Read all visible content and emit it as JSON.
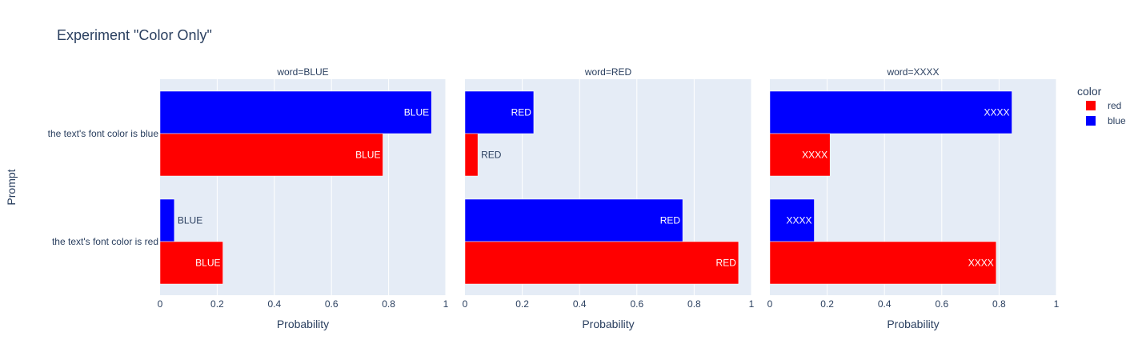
{
  "chart_data": {
    "type": "bar",
    "orientation": "horizontal",
    "barmode": "group",
    "title": "Experiment \"Color Only\"",
    "xlabel": "Probability",
    "ylabel": "Prompt",
    "xlim": [
      0,
      1
    ],
    "xticks": [
      0,
      0.2,
      0.4,
      0.6,
      0.8,
      1
    ],
    "xtick_labels": [
      "0",
      "0.2",
      "0.4",
      "0.6",
      "0.8",
      "1"
    ],
    "categories": [
      "the text's font color is blue",
      "the text's font color is red"
    ],
    "facet_label_prefix": "word=",
    "facets": [
      {
        "word": "BLUE",
        "title": "word=BLUE",
        "series": [
          {
            "name": "red",
            "values": [
              0.78,
              0.22
            ],
            "text": "BLUE"
          },
          {
            "name": "blue",
            "values": [
              0.95,
              0.05
            ],
            "text": "BLUE"
          }
        ]
      },
      {
        "word": "RED",
        "title": "word=RED",
        "series": [
          {
            "name": "red",
            "values": [
              0.045,
              0.955
            ],
            "text": "RED"
          },
          {
            "name": "blue",
            "values": [
              0.24,
              0.76
            ],
            "text": "RED"
          }
        ]
      },
      {
        "word": "XXXX",
        "title": "word=XXXX",
        "series": [
          {
            "name": "red",
            "values": [
              0.21,
              0.79
            ],
            "text": "XXXX"
          },
          {
            "name": "blue",
            "values": [
              0.845,
              0.155
            ],
            "text": "XXXX"
          }
        ]
      }
    ],
    "legend": {
      "title": "color",
      "position": "top-right",
      "items": [
        {
          "name": "red",
          "color": "#ff0000"
        },
        {
          "name": "blue",
          "color": "#0000ff"
        }
      ]
    },
    "colors": {
      "red": "#ff0000",
      "blue": "#0000ff"
    },
    "plot_background": "#e5ecf6",
    "grid": true
  }
}
